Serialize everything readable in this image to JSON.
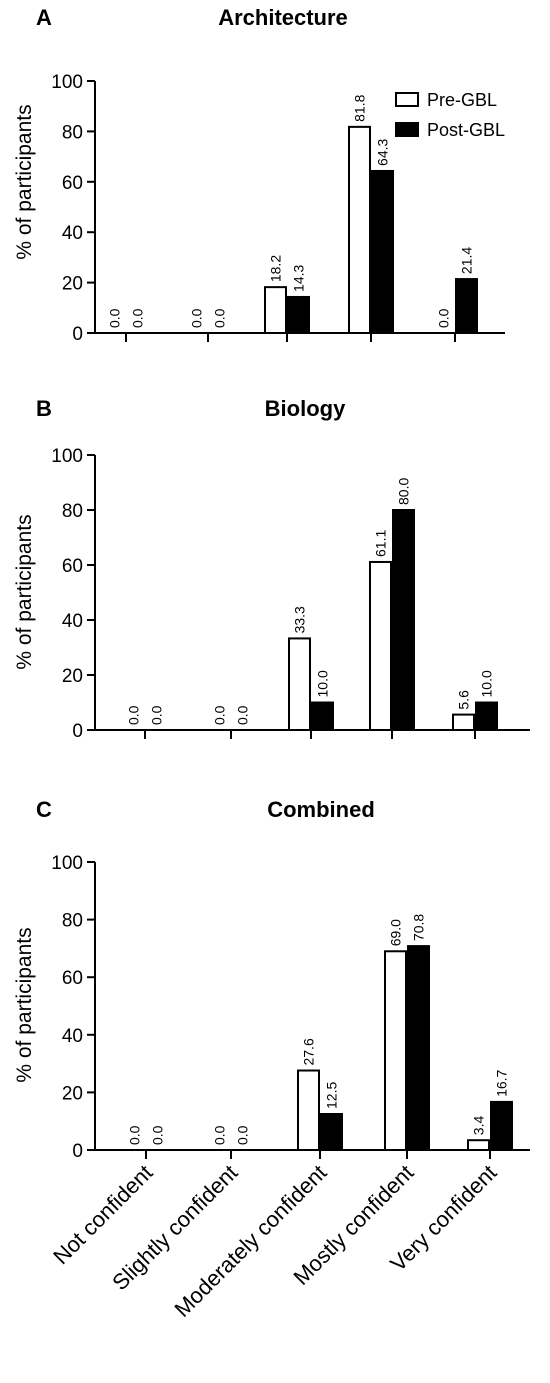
{
  "legend": {
    "pre": "Pre-GBL",
    "post": "Post-GBL",
    "colors": {
      "pre": "#ffffff",
      "post": "#000000"
    },
    "position": "top-right"
  },
  "chart_data": [
    {
      "type": "bar",
      "panel": "A",
      "title": "Architecture",
      "ylabel": "% of participants",
      "xlabel": "",
      "ylim": [
        0,
        100
      ],
      "yticks": [
        "0",
        "20",
        "40",
        "60",
        "80",
        "100"
      ],
      "categories": [
        "Not confident",
        "Slightly confident",
        "Moderately confident",
        "Mostly confident",
        "Very confident"
      ],
      "series": [
        {
          "name": "Pre-GBL",
          "values": [
            0.0,
            0.0,
            18.2,
            81.8,
            0.0
          ],
          "labels": [
            "0.0",
            "0.0",
            "18.2",
            "81.8",
            "0.0"
          ]
        },
        {
          "name": "Post-GBL",
          "values": [
            0.0,
            0.0,
            14.3,
            64.3,
            21.4
          ],
          "labels": [
            "0.0",
            "0.0",
            "14.3",
            "64.3",
            "21.4"
          ]
        }
      ],
      "grid": false
    },
    {
      "type": "bar",
      "panel": "B",
      "title": "Biology",
      "ylabel": "% of participants",
      "xlabel": "",
      "ylim": [
        0,
        100
      ],
      "yticks": [
        "0",
        "20",
        "40",
        "60",
        "80",
        "100"
      ],
      "categories": [
        "Not confident",
        "Slightly confident",
        "Moderately confident",
        "Mostly confident",
        "Very confident"
      ],
      "series": [
        {
          "name": "Pre-GBL",
          "values": [
            0.0,
            0.0,
            33.3,
            61.1,
            5.6
          ],
          "labels": [
            "0.0",
            "0.0",
            "33.3",
            "61.1",
            "5.6"
          ]
        },
        {
          "name": "Post-GBL",
          "values": [
            0.0,
            0.0,
            10.0,
            80.0,
            10.0
          ],
          "labels": [
            "0.0",
            "0.0",
            "10.0",
            "80.0",
            "10.0"
          ]
        }
      ],
      "grid": false
    },
    {
      "type": "bar",
      "panel": "C",
      "title": "Combined",
      "ylabel": "% of participants",
      "xlabel": "",
      "ylim": [
        0,
        100
      ],
      "yticks": [
        "0",
        "20",
        "40",
        "60",
        "80",
        "100"
      ],
      "categories": [
        "Not confident",
        "Slightly confident",
        "Moderately confident",
        "Mostly confident",
        "Very confident"
      ],
      "series": [
        {
          "name": "Pre-GBL",
          "values": [
            0.0,
            0.0,
            27.6,
            69.0,
            3.4
          ],
          "labels": [
            "0.0",
            "0.0",
            "27.6",
            "69.0",
            "3.4"
          ]
        },
        {
          "name": "Post-GBL",
          "values": [
            0.0,
            0.0,
            12.5,
            70.8,
            16.7
          ],
          "labels": [
            "0.0",
            "0.0",
            "12.5",
            "70.8",
            "16.7"
          ]
        }
      ],
      "grid": false
    }
  ]
}
